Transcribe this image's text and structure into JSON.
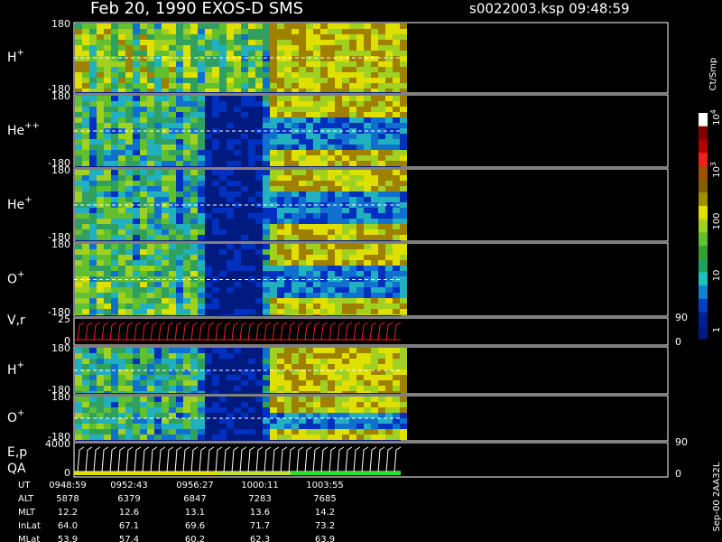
{
  "header": {
    "title": "Feb 20, 1990   EXOS-D SMS",
    "file": "s0022003.ksp  09:48:59"
  },
  "panels": [
    {
      "species": "H",
      "charge": "+",
      "top": "180",
      "bottom": "-180"
    },
    {
      "species": "He",
      "charge": "++",
      "top": "180",
      "bottom": "-180"
    },
    {
      "species": "He",
      "charge": "+",
      "top": "180",
      "bottom": "-180"
    },
    {
      "species": "O",
      "charge": "+",
      "top": "180",
      "bottom": "-180"
    },
    {
      "species": "V,r",
      "charge": "",
      "top": "25",
      "bottom": "0",
      "right_top": "90",
      "right_bottom": "0"
    },
    {
      "species": "H",
      "charge": "+",
      "top": "180",
      "bottom": "-180"
    },
    {
      "species": "O",
      "charge": "+",
      "top": "180",
      "bottom": "-180"
    },
    {
      "species": "E,p",
      "species2": "QA",
      "charge": "",
      "top": "4000",
      "bottom": "0",
      "right_top": "90",
      "right_bottom": "0"
    }
  ],
  "colorbar": {
    "unit": "Ct/Smp",
    "labels": [
      {
        "base": "10",
        "exp": "4"
      },
      {
        "base": "10",
        "exp": "3"
      },
      {
        "base": "100",
        "exp": ""
      },
      {
        "base": "10",
        "exp": ""
      },
      {
        "base": "1",
        "exp": ""
      }
    ]
  },
  "footer": "Sep-00  2AA32L",
  "ephemeris": {
    "rows": [
      {
        "name": "UT",
        "values": [
          "0948:59",
          "0952:43",
          "0956:27",
          "1000:11",
          "1003:55"
        ]
      },
      {
        "name": "ALT",
        "values": [
          "5878",
          "6379",
          "6847",
          "7283",
          "7685"
        ]
      },
      {
        "name": "MLT",
        "values": [
          "12.2",
          "12.6",
          "13.1",
          "13.6",
          "14.2"
        ]
      },
      {
        "name": "InLat",
        "values": [
          "64.0",
          "67.1",
          "69.6",
          "71.7",
          "73.2"
        ]
      },
      {
        "name": "MLat",
        "values": [
          "53.9",
          "57.4",
          "60.2",
          "62.3",
          "63.9"
        ]
      }
    ]
  }
}
